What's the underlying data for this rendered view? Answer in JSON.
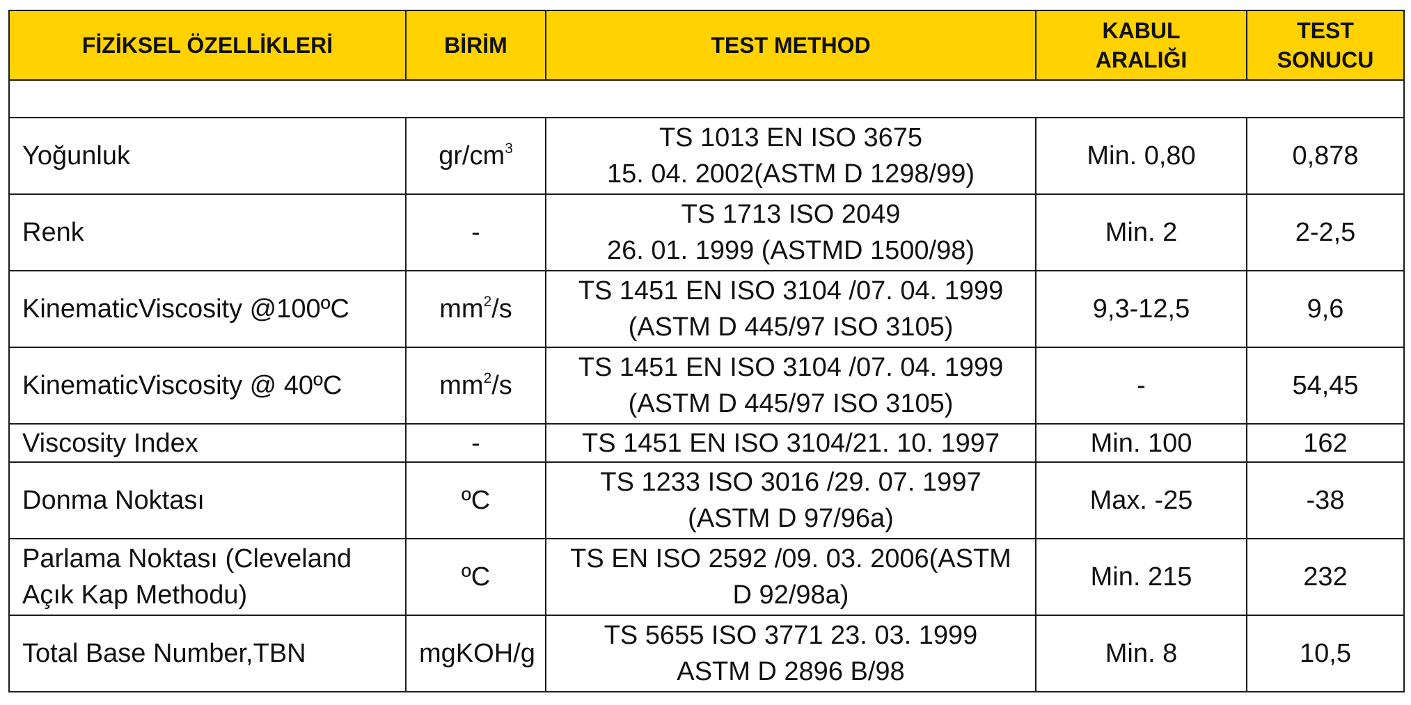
{
  "headers": {
    "property": "FİZİKSEL ÖZELLİKLERİ",
    "unit": "BİRİM",
    "method": "TEST METHOD",
    "range_line1": "KABUL",
    "range_line2": "ARALIĞI",
    "result_line1": "TEST",
    "result_line2": "SONUCU"
  },
  "rows": [
    {
      "property": "Yoğunluk",
      "unit_base": "gr/cm",
      "unit_sup": "3",
      "unit_tail": "",
      "method_line1": "TS 1013 EN ISO 3675",
      "method_line2": "15. 04. 2002(ASTM D 1298/99)",
      "range": "Min. 0,80",
      "result": "0,878"
    },
    {
      "property": "Renk",
      "unit": "-",
      "method_line1": "TS 1713 ISO 2049",
      "method_line2": "26. 01. 1999 (ASTMD 1500/98)",
      "range": "Min. 2",
      "result": "2-2,5"
    },
    {
      "property": "KinematicViscosity @100ºC",
      "unit_base": "mm",
      "unit_sup": "2",
      "unit_tail": "/s",
      "method_line1": "TS 1451 EN ISO 3104 /07. 04. 1999",
      "method_line2": "(ASTM D 445/97 ISO 3105)",
      "range": "9,3-12,5",
      "result": "9,6"
    },
    {
      "property": "KinematicViscosity @ 40ºC",
      "unit_base": "mm",
      "unit_sup": "2",
      "unit_tail": "/s",
      "method_line1": "TS 1451 EN ISO 3104 /07. 04. 1999",
      "method_line2": "(ASTM D 445/97 ISO 3105)",
      "range": "-",
      "result": "54,45"
    },
    {
      "property": "Viscosity Index",
      "unit": "-",
      "method": "TS 1451 EN ISO 3104/21. 10. 1997",
      "range": "Min. 100",
      "result": "162"
    },
    {
      "property": "Donma Noktası",
      "unit": "ºC",
      "method_line1": "TS 1233 ISO 3016 /29. 07. 1997",
      "method_line2": "(ASTM D 97/96a)",
      "range": "Max. -25",
      "result": "-38"
    },
    {
      "property_line1": "Parlama Noktası (Cleveland",
      "property_line2": "Açık Kap Methodu)",
      "unit": "ºC",
      "method_line1": "TS EN ISO 2592 /09. 03. 2006(ASTM",
      "method_line2": "D 92/98a)",
      "range": "Min. 215",
      "result": "232"
    },
    {
      "property": "Total Base Number,TBN",
      "unit": "mgKOH/g",
      "method_line1": "TS 5655 ISO 3771 23. 03. 1999",
      "method_line2": "ASTM D 2896 B/98",
      "range": "Min. 8",
      "result": "10,5"
    }
  ],
  "colors": {
    "header_background": "#ffd200",
    "border": "#1a1a1a",
    "text": "#111111"
  }
}
